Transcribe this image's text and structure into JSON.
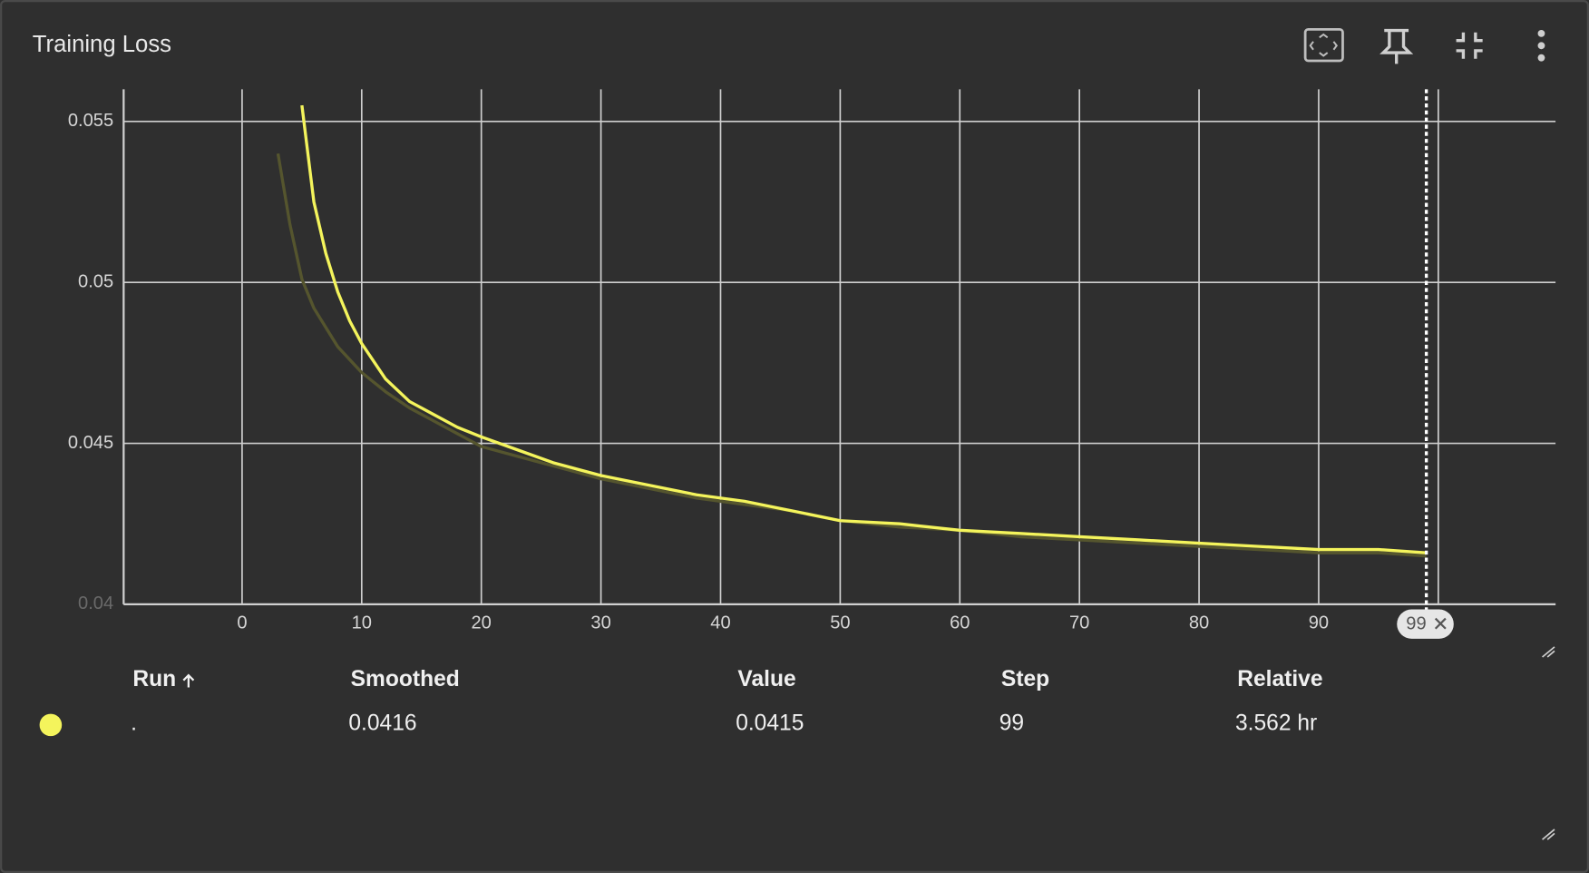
{
  "title": "Training Loss",
  "chart_data": {
    "type": "line",
    "x": [
      3,
      4,
      5,
      6,
      7,
      8,
      9,
      10,
      12,
      14,
      16,
      18,
      20,
      23,
      26,
      30,
      34,
      38,
      42,
      46,
      50,
      55,
      60,
      65,
      70,
      75,
      80,
      85,
      90,
      95,
      99
    ],
    "series": [
      {
        "color": "#f4f45c",
        "values": [
          null,
          null,
          0.0555,
          0.0525,
          0.0509,
          0.0497,
          0.0488,
          0.0481,
          0.047,
          0.0463,
          0.0459,
          0.0455,
          0.0452,
          0.0448,
          0.0444,
          0.044,
          0.0437,
          0.0434,
          0.0432,
          0.0429,
          0.0426,
          0.0425,
          0.0423,
          0.0422,
          0.0421,
          0.042,
          0.0419,
          0.0418,
          0.0417,
          0.0417,
          0.0416
        ]
      },
      {
        "color": "#55552e",
        "values": [
          0.054,
          0.0518,
          0.0501,
          0.0492,
          0.0486,
          0.048,
          0.0476,
          0.0472,
          0.0466,
          0.0461,
          0.0457,
          0.0453,
          0.0449,
          0.0446,
          0.0443,
          0.0439,
          0.0436,
          0.0433,
          0.0431,
          0.0429,
          0.0426,
          0.0424,
          0.0423,
          0.0421,
          0.042,
          0.0419,
          0.0418,
          0.0417,
          0.0416,
          0.0416,
          0.0415
        ]
      }
    ],
    "xlim": [
      -9.9,
      109.8
    ],
    "ylim": [
      0.04,
      0.056
    ],
    "xticks": [
      0,
      10,
      20,
      30,
      40,
      50,
      60,
      70,
      80,
      90,
      100
    ],
    "yticks": [
      0.04,
      0.045,
      0.05,
      0.055
    ],
    "grid": true
  },
  "cursor": {
    "step": 99
  },
  "table": {
    "columns": [
      "Run",
      "Smoothed",
      "Value",
      "Step",
      "Relative"
    ],
    "rows": [
      [
        ".",
        0.0416,
        0.0415,
        99,
        "3.562 hr"
      ]
    ]
  }
}
